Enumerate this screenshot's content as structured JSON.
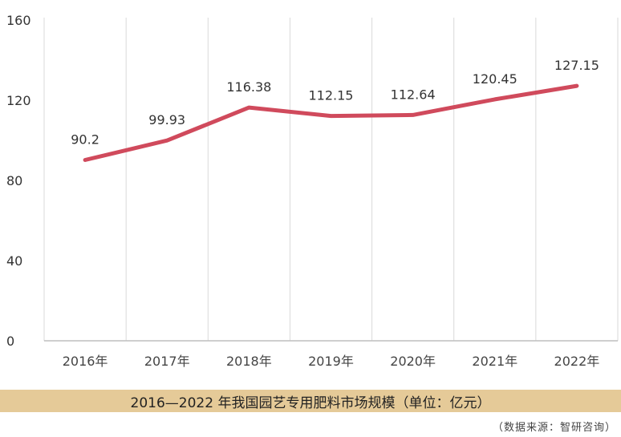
{
  "chart_data": {
    "type": "line",
    "title": "2016—2022 年我国园艺专用肥料市场规模（单位：亿元）",
    "xlabel": "",
    "ylabel": "",
    "categories": [
      "2016年",
      "2017年",
      "2018年",
      "2019年",
      "2020年",
      "2021年",
      "2022年"
    ],
    "series": [
      {
        "values": [
          90.2,
          99.93,
          116.38,
          112.15,
          112.64,
          120.45,
          127.15
        ]
      }
    ],
    "data_labels": [
      "90.2",
      "99.93",
      "116.38",
      "112.15",
      "112.64",
      "120.45",
      "127.15"
    ],
    "ylim": [
      0,
      160
    ],
    "yticks": [
      0,
      40,
      80,
      120,
      160
    ],
    "ytick_labels": [
      "0",
      "40",
      "80",
      "120",
      "160"
    ],
    "grid": "vertical",
    "line_color": "#d04a5c",
    "grid_color": "#d9d9d9",
    "axis_color": "#bfbfbf"
  },
  "caption": "2016—2022 年我国园艺专用肥料市场规模（单位：亿元）",
  "source": "（数据来源：智研咨询）"
}
